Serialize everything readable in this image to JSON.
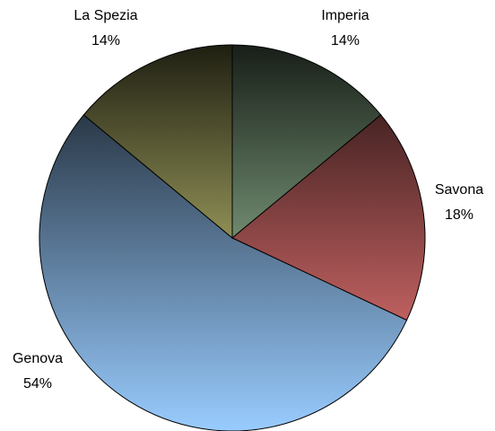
{
  "chart_data": {
    "type": "pie",
    "categories": [
      "Imperia",
      "Savona",
      "Genova",
      "La Spezia"
    ],
    "values": [
      14,
      18,
      54,
      14
    ],
    "value_labels": [
      "14%",
      "18%",
      "54%",
      "14%"
    ],
    "colors": [
      "#c6f7c6",
      "#ff8080",
      "#99ccff",
      "#ffff99"
    ]
  }
}
